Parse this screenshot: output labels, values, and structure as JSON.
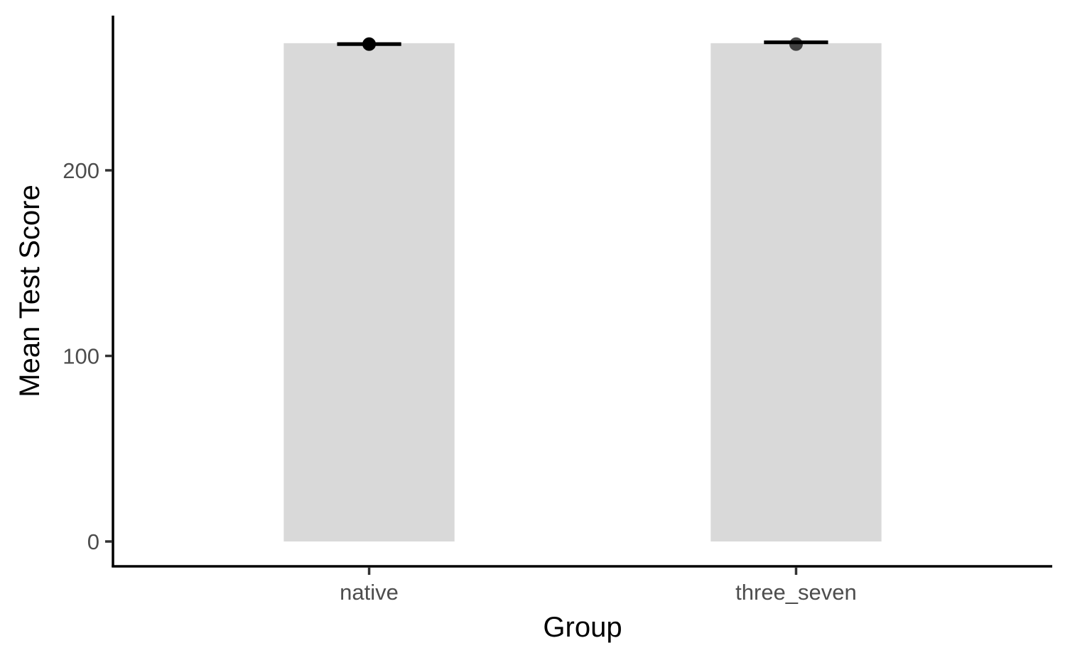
{
  "chart_data": {
    "type": "bar",
    "categories": [
      "native",
      "three_seven"
    ],
    "values": [
      268.5,
      268.5
    ],
    "errorbars": [
      {
        "category": "native",
        "low": 268,
        "high": 268
      },
      {
        "category": "three_seven",
        "low": 269,
        "high": 269
      }
    ],
    "points": [
      {
        "category": "native",
        "y": 268
      },
      {
        "category": "three_seven",
        "y": 268
      }
    ],
    "title": "",
    "xlabel": "Group",
    "ylabel": "Mean Test Score",
    "yticks": [
      0,
      100,
      200
    ],
    "ylim": [
      -13.5,
      282
    ],
    "grid": false,
    "legend": "none",
    "colors": {
      "bar": "#d9d9d9",
      "point": "#000000",
      "errorbar": "#000000"
    }
  }
}
